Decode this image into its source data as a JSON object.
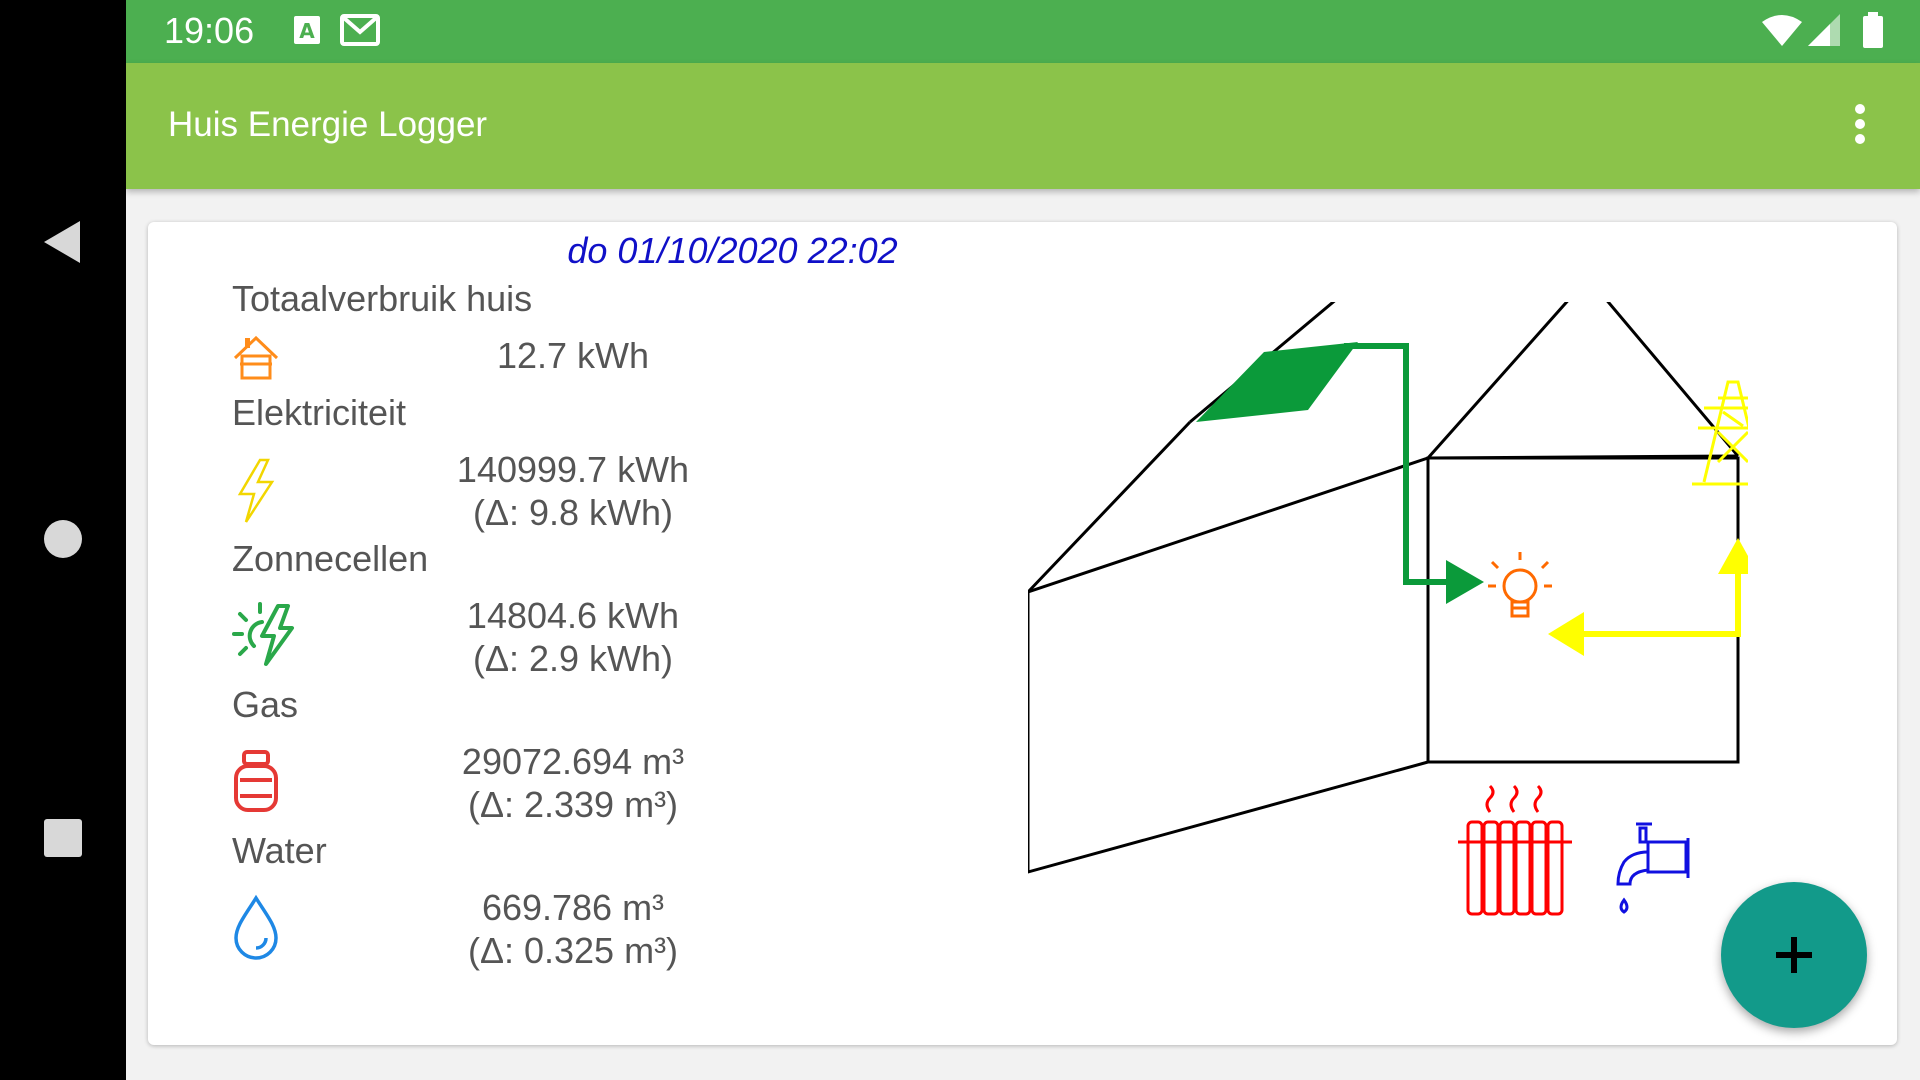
{
  "status_bar": {
    "time": "19:06",
    "icons": [
      "a-notification-icon",
      "gmail-icon",
      "wifi-icon",
      "signal-icon",
      "battery-icon"
    ]
  },
  "app_bar": {
    "title": "Huis Energie Logger",
    "menu_icon": "overflow-menu-icon"
  },
  "card": {
    "datetime": "do 01/10/2020 22:02",
    "sections": [
      {
        "label": "Totaalverbruik huis",
        "icon": "house-icon",
        "value": "12.7 kWh",
        "delta": ""
      },
      {
        "label": "Elektriciteit",
        "icon": "lightning-icon",
        "value": "140999.7 kWh",
        "delta": "(Δ: 9.8 kWh)"
      },
      {
        "label": "Zonnecellen",
        "icon": "solar-lightning-icon",
        "value": "14804.6 kWh",
        "delta": "(Δ: 2.9 kWh)"
      },
      {
        "label": "Gas",
        "icon": "gas-bottle-icon",
        "value": "29072.694 m³",
        "delta": "(Δ: 2.339 m³)"
      },
      {
        "label": "Water",
        "icon": "water-drop-icon",
        "value": "669.786 m³",
        "delta": "(Δ: 0.325 m³)"
      }
    ]
  },
  "diagram": {
    "icons": [
      "solar-panel-icon",
      "lightbulb-icon",
      "power-pylon-icon",
      "radiator-icon",
      "water-tap-icon"
    ],
    "colors": {
      "solar": "#0b9a3a",
      "grid": "#ffff00",
      "bulb": "#ff6a00",
      "radiator": "#ff0000",
      "tap": "#1010e0"
    }
  },
  "fab": {
    "icon": "plus-icon",
    "color": "#129a8a"
  },
  "nav": {
    "icons": [
      "back-icon",
      "home-icon",
      "recents-icon"
    ]
  }
}
